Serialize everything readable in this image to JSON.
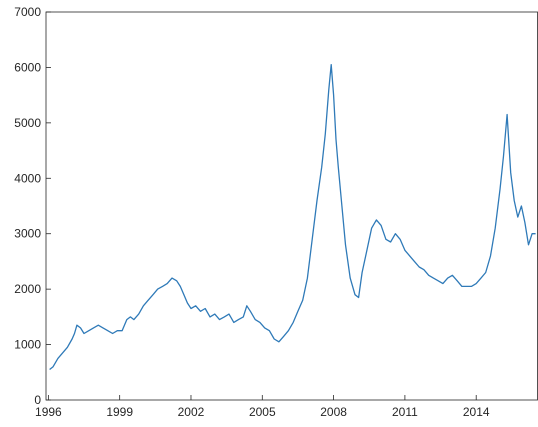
{
  "chart_data": {
    "type": "line",
    "title": "",
    "xlabel": "",
    "ylabel": "",
    "xlim": [
      1995.9,
      2016.6
    ],
    "ylim": [
      0,
      7000
    ],
    "grid": false,
    "line_color": "#2f7ab8",
    "axis_color": "#262626",
    "x_ticks": [
      {
        "value": 1996,
        "label": "1996"
      },
      {
        "value": 1999,
        "label": "1999"
      },
      {
        "value": 2002,
        "label": "2002"
      },
      {
        "value": 2005,
        "label": "2005"
      },
      {
        "value": 2008,
        "label": "2008"
      },
      {
        "value": 2011,
        "label": "2011"
      },
      {
        "value": 2014,
        "label": "2014"
      }
    ],
    "y_ticks": [
      {
        "value": 0,
        "label": "0"
      },
      {
        "value": 1000,
        "label": "1000"
      },
      {
        "value": 2000,
        "label": "2000"
      },
      {
        "value": 3000,
        "label": "3000"
      },
      {
        "value": 4000,
        "label": "4000"
      },
      {
        "value": 5000,
        "label": "5000"
      },
      {
        "value": 6000,
        "label": "6000"
      },
      {
        "value": 7000,
        "label": "7000"
      }
    ],
    "series": [
      {
        "x": [
          1996.05,
          1996.2,
          1996.4,
          1996.6,
          1996.8,
          1997.0,
          1997.1,
          1997.2,
          1997.35,
          1997.5,
          1997.7,
          1997.9,
          1998.1,
          1998.3,
          1998.5,
          1998.7,
          1998.9,
          1999.1,
          1999.3,
          1999.45,
          1999.6,
          1999.8,
          2000.0,
          2000.2,
          2000.4,
          2000.6,
          2000.8,
          2001.0,
          2001.2,
          2001.4,
          2001.55,
          2001.7,
          2001.85,
          2002.0,
          2002.2,
          2002.4,
          2002.6,
          2002.8,
          2003.0,
          2003.2,
          2003.4,
          2003.6,
          2003.8,
          2004.0,
          2004.2,
          2004.35,
          2004.5,
          2004.7,
          2004.9,
          2005.1,
          2005.3,
          2005.5,
          2005.7,
          2005.9,
          2006.1,
          2006.3,
          2006.5,
          2006.7,
          2006.9,
          2007.1,
          2007.3,
          2007.5,
          2007.65,
          2007.8,
          2007.9,
          2008.0,
          2008.1,
          2008.2,
          2008.35,
          2008.5,
          2008.7,
          2008.9,
          2009.05,
          2009.2,
          2009.4,
          2009.6,
          2009.8,
          2010.0,
          2010.2,
          2010.4,
          2010.6,
          2010.8,
          2011.0,
          2011.2,
          2011.4,
          2011.6,
          2011.8,
          2012.0,
          2012.2,
          2012.4,
          2012.6,
          2012.8,
          2013.0,
          2013.2,
          2013.4,
          2013.6,
          2013.8,
          2014.0,
          2014.2,
          2014.4,
          2014.6,
          2014.8,
          2015.0,
          2015.15,
          2015.3,
          2015.45,
          2015.6,
          2015.75,
          2015.9,
          2016.05,
          2016.2,
          2016.35,
          2016.5
        ],
        "y": [
          550,
          600,
          750,
          850,
          950,
          1100,
          1200,
          1350,
          1300,
          1200,
          1250,
          1300,
          1350,
          1300,
          1250,
          1200,
          1250,
          1250,
          1450,
          1500,
          1450,
          1550,
          1700,
          1800,
          1900,
          2000,
          2050,
          2100,
          2200,
          2150,
          2050,
          1900,
          1750,
          1650,
          1700,
          1600,
          1650,
          1500,
          1550,
          1450,
          1500,
          1550,
          1400,
          1450,
          1500,
          1700,
          1600,
          1450,
          1400,
          1300,
          1250,
          1100,
          1050,
          1150,
          1250,
          1400,
          1600,
          1800,
          2200,
          2900,
          3600,
          4200,
          4800,
          5600,
          6050,
          5500,
          4700,
          4200,
          3500,
          2800,
          2200,
          1900,
          1850,
          2300,
          2700,
          3100,
          3250,
          3150,
          2900,
          2850,
          3000,
          2900,
          2700,
          2600,
          2500,
          2400,
          2350,
          2250,
          2200,
          2150,
          2100,
          2200,
          2250,
          2150,
          2050,
          2050,
          2050,
          2100,
          2200,
          2300,
          2600,
          3100,
          3800,
          4400,
          5150,
          4100,
          3600,
          3300,
          3500,
          3200,
          2800,
          3000,
          3000
        ]
      }
    ]
  }
}
